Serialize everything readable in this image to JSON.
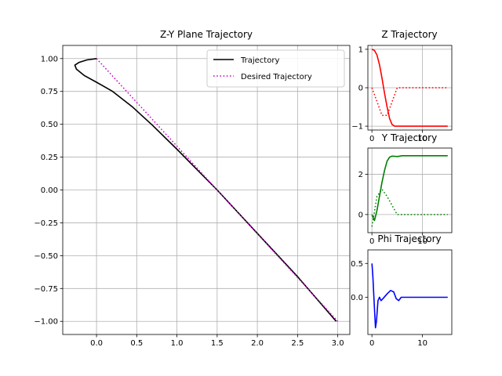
{
  "chart_data": [
    {
      "id": "main",
      "type": "line",
      "title": "Z-Y Plane Trajectory",
      "xlabel": "",
      "ylabel": "",
      "xlim": [
        -0.42,
        3.15
      ],
      "ylim": [
        -1.1,
        1.1
      ],
      "xticks": [
        0.0,
        0.5,
        1.0,
        1.5,
        2.0,
        2.5,
        3.0
      ],
      "xtick_labels": [
        "0.0",
        "0.5",
        "1.0",
        "1.5",
        "2.0",
        "2.5",
        "3.0"
      ],
      "yticks": [
        1.0,
        0.75,
        0.5,
        0.25,
        0.0,
        -0.25,
        -0.5,
        -0.75,
        -1.0
      ],
      "ytick_labels": [
        "1.00",
        "0.75",
        "0.50",
        "0.25",
        "0.00",
        "−0.25",
        "−0.50",
        "−0.75",
        "−1.00"
      ],
      "grid": true,
      "legend": {
        "placement": "top-right"
      },
      "series": [
        {
          "name": "Trajectory",
          "color": "#000000",
          "style": "solid",
          "points": [
            [
              0.0,
              1.0
            ],
            [
              -0.12,
              0.99
            ],
            [
              -0.22,
              0.97
            ],
            [
              -0.27,
              0.95
            ],
            [
              -0.25,
              0.92
            ],
            [
              -0.15,
              0.87
            ],
            [
              0.0,
              0.82
            ],
            [
              0.2,
              0.75
            ],
            [
              0.45,
              0.63
            ],
            [
              0.7,
              0.49
            ],
            [
              1.0,
              0.31
            ],
            [
              1.5,
              0.0
            ],
            [
              2.0,
              -0.33
            ],
            [
              2.5,
              -0.66
            ],
            [
              2.98,
              -1.0
            ]
          ]
        },
        {
          "name": "Desired Trajectory",
          "color": "#cc00cc",
          "style": "dotted",
          "points": [
            [
              0.0,
              1.0
            ],
            [
              3.0,
              -1.0
            ]
          ]
        }
      ]
    },
    {
      "id": "z",
      "type": "line",
      "title": "Z Trajectory",
      "xlim": [
        -0.8,
        15.8
      ],
      "ylim": [
        -1.1,
        1.1
      ],
      "xticks": [
        0,
        10
      ],
      "xtick_labels": [
        "0",
        "10"
      ],
      "yticks": [
        1,
        0,
        -1
      ],
      "ytick_labels": [
        "1",
        "0",
        "−1"
      ],
      "grid": true,
      "series": [
        {
          "color": "#ff0000",
          "style": "solid",
          "points": [
            [
              0,
              1.0
            ],
            [
              0.5,
              0.97
            ],
            [
              1,
              0.85
            ],
            [
              1.5,
              0.6
            ],
            [
              2,
              0.25
            ],
            [
              2.5,
              -0.15
            ],
            [
              3,
              -0.5
            ],
            [
              3.5,
              -0.8
            ],
            [
              4,
              -0.96
            ],
            [
              4.5,
              -1.0
            ],
            [
              15,
              -1.0
            ]
          ]
        },
        {
          "color": "#ff0000",
          "style": "dotted",
          "points": [
            [
              0,
              0.0
            ],
            [
              2,
              -0.72
            ],
            [
              3,
              -0.72
            ],
            [
              5,
              0.0
            ],
            [
              15,
              0.0
            ]
          ]
        }
      ]
    },
    {
      "id": "y",
      "type": "line",
      "title": "Y Trajectory",
      "xlim": [
        -0.8,
        15.8
      ],
      "ylim": [
        -0.9,
        3.3
      ],
      "xticks": [
        0,
        10
      ],
      "xtick_labels": [
        "0",
        "10"
      ],
      "yticks": [
        2,
        0
      ],
      "ytick_labels": [
        "2",
        "0"
      ],
      "grid": true,
      "series": [
        {
          "color": "#008000",
          "style": "solid",
          "points": [
            [
              0,
              0.0
            ],
            [
              0.5,
              -0.3
            ],
            [
              1,
              0.2
            ],
            [
              1.5,
              0.9
            ],
            [
              2,
              1.6
            ],
            [
              2.5,
              2.2
            ],
            [
              3,
              2.65
            ],
            [
              3.5,
              2.85
            ],
            [
              4,
              2.9
            ],
            [
              5,
              2.88
            ],
            [
              6,
              2.92
            ],
            [
              15,
              2.92
            ]
          ]
        },
        {
          "color": "#008000",
          "style": "dotted",
          "points": [
            [
              0,
              -0.6
            ],
            [
              1,
              0.9
            ],
            [
              2,
              1.25
            ],
            [
              3,
              0.9
            ],
            [
              5,
              0.0
            ],
            [
              15,
              0.0
            ]
          ]
        }
      ]
    },
    {
      "id": "phi",
      "type": "line",
      "title": "Phi Trajectory",
      "xlim": [
        -0.8,
        15.8
      ],
      "ylim": [
        -0.55,
        0.7
      ],
      "xticks": [
        0,
        10
      ],
      "xtick_labels": [
        "0",
        "10"
      ],
      "yticks": [
        0.5,
        0.0
      ],
      "ytick_labels": [
        "0.5",
        "0.0"
      ],
      "grid": false,
      "series": [
        {
          "color": "#0000ff",
          "style": "solid",
          "points": [
            [
              0,
              0.5
            ],
            [
              0.2,
              0.3
            ],
            [
              0.45,
              -0.1
            ],
            [
              0.7,
              -0.45
            ],
            [
              0.9,
              -0.35
            ],
            [
              1.2,
              -0.05
            ],
            [
              1.5,
              0.0
            ],
            [
              1.8,
              -0.05
            ],
            [
              2.2,
              -0.02
            ],
            [
              3,
              0.05
            ],
            [
              3.7,
              0.1
            ],
            [
              4.3,
              0.08
            ],
            [
              4.8,
              -0.02
            ],
            [
              5.3,
              -0.05
            ],
            [
              5.8,
              0.0
            ],
            [
              15,
              0.0
            ]
          ]
        }
      ]
    }
  ]
}
